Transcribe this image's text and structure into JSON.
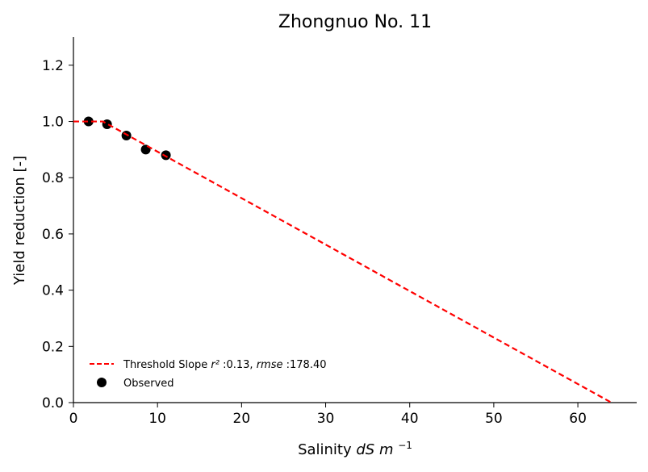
{
  "chart_data": {
    "type": "scatter",
    "title": "Zhongnuo No. 11",
    "xlabel": "Salinity",
    "xlabel_math": "dS m",
    "xlabel_exp": "−1",
    "ylabel": "Yield reduction [-]",
    "xlim": [
      0,
      67
    ],
    "ylim": [
      0,
      1.3
    ],
    "xticks": [
      0,
      10,
      20,
      30,
      40,
      50,
      60
    ],
    "yticks": [
      0.0,
      0.2,
      0.4,
      0.6,
      0.8,
      1.0,
      1.2
    ],
    "grid": false,
    "legend_position": "lower-left",
    "series": [
      {
        "name": "Observed",
        "kind": "scatter",
        "color": "#000000",
        "x": [
          1.8,
          4.0,
          6.3,
          8.6,
          11.0
        ],
        "y": [
          1.0,
          0.99,
          0.95,
          0.9,
          0.88
        ]
      },
      {
        "kind": "line",
        "style": "dashed",
        "color": "#ff0000",
        "x": [
          0,
          3.5,
          64.0
        ],
        "y": [
          1.0,
          1.0,
          0.0
        ]
      }
    ],
    "legend": {
      "line_label_prefix": "Threshold Slope ",
      "r2_label": "r²",
      "r2_value": ":0.13, ",
      "rmse_label": "rmse",
      "rmse_value": ":178.40",
      "scatter_label": "Observed"
    }
  }
}
